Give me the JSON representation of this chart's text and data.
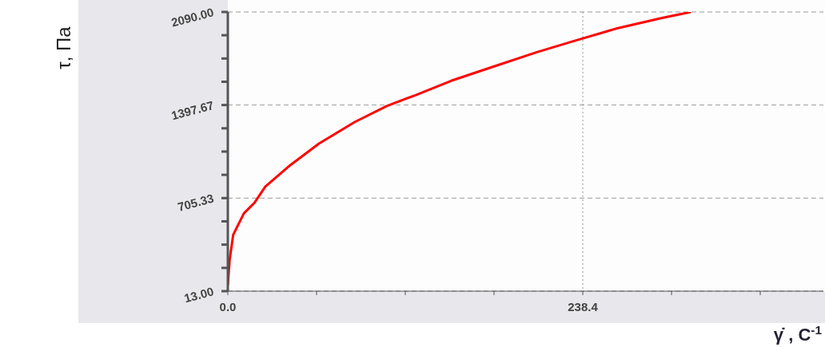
{
  "chart_data": {
    "type": "line",
    "xlabel": "γ̇ , С$^{-1}$",
    "ylabel": "τ, Па",
    "x": [
      0,
      1.2,
      3.6,
      10.8,
      18,
      25.2,
      42,
      61.2,
      85.2,
      106.8,
      126,
      150,
      178.8,
      207.6,
      231.6,
      260.4,
      291.6,
      311
    ],
    "series": [
      {
        "color": "#ff0000",
        "values": [
          58,
          245,
          432,
          592,
          672,
          791,
          951,
          1111,
          1271,
          1391,
          1471,
          1578,
          1685,
          1791,
          1871,
          1965,
          2045,
          2090
        ]
      }
    ],
    "xlim": [
      0,
      400
    ],
    "xticks": [
      {
        "value": 0,
        "label": "0.0"
      },
      {
        "value": 59.6,
        "label": null
      },
      {
        "value": 119.2,
        "label": null
      },
      {
        "value": 178.8,
        "label": null
      },
      {
        "value": 238.4,
        "label": "238.4"
      },
      {
        "value": 298,
        "label": null
      },
      {
        "value": 357.6,
        "label": null
      }
    ],
    "ylim": [
      13,
      2090
    ],
    "yticks": [
      {
        "value": 13,
        "label": "13.00"
      },
      {
        "value": 186.08,
        "label": null
      },
      {
        "value": 359.17,
        "label": null
      },
      {
        "value": 532.25,
        "label": null
      },
      {
        "value": 705.33,
        "label": "705.33"
      },
      {
        "value": 878.42,
        "label": null
      },
      {
        "value": 1051.5,
        "label": null
      },
      {
        "value": 1224.58,
        "label": null
      },
      {
        "value": 1397.67,
        "label": "1397.67"
      },
      {
        "value": 1570.75,
        "label": null
      },
      {
        "value": 1743.83,
        "label": null
      },
      {
        "value": 1916.92,
        "label": null
      },
      {
        "value": 2090,
        "label": "2090.00"
      }
    ],
    "grid": true,
    "marker": "none",
    "line_style": "solid"
  }
}
